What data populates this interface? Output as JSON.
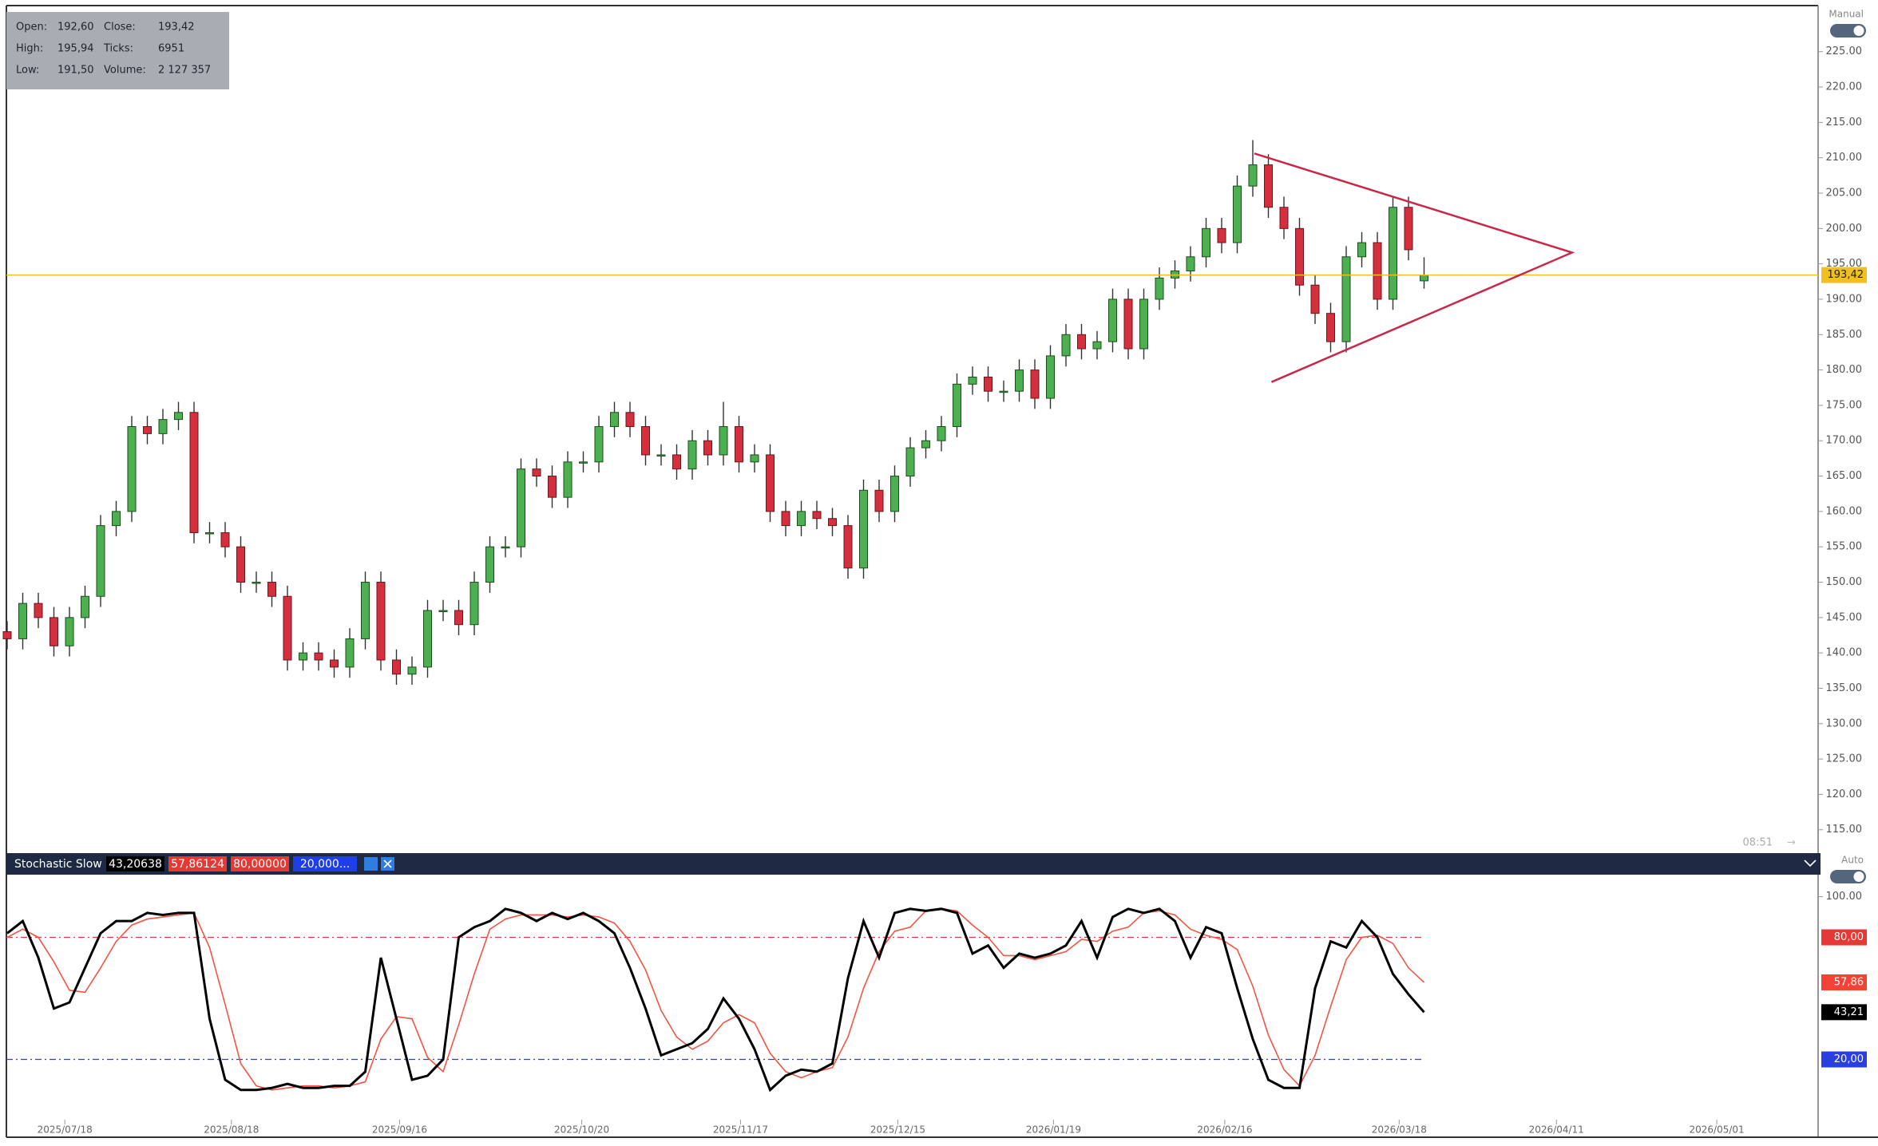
{
  "info_box": [
    [
      "Open:",
      "192,60",
      "Close:",
      "193,42"
    ],
    [
      "High:",
      "195,94",
      "Ticks:",
      "6951"
    ],
    [
      "Low:",
      "191,50",
      "Volume:",
      "2 127 357"
    ]
  ],
  "scale_mode_top": "Manual",
  "scale_mode_bottom": "Auto",
  "clock": "08:51",
  "chart_data": [
    {
      "type": "candlestick",
      "up_color": "#4caf50",
      "down_color": "#d32f3c",
      "xlim": [
        0,
        116
      ],
      "ylim": [
        111.7,
        231.4
      ],
      "xticks": [
        {
          "value": 3.7,
          "label": "2025/07/18"
        },
        {
          "value": 14.4,
          "label": "2025/08/18"
        },
        {
          "value": 25.2,
          "label": "2025/09/16"
        },
        {
          "value": 36.9,
          "label": "2025/10/20"
        },
        {
          "value": 47.1,
          "label": "2025/11/17"
        },
        {
          "value": 57.2,
          "label": "2025/12/15"
        },
        {
          "value": 67.2,
          "label": "2026/01/19"
        },
        {
          "value": 78.2,
          "label": "2026/02/16"
        },
        {
          "value": 89.4,
          "label": "2026/03/18"
        },
        {
          "value": 99.5,
          "label": "2026/04/11"
        },
        {
          "value": 109.8,
          "label": "2026/05/01"
        }
      ],
      "yticks": [
        {
          "value": 225,
          "label": "225.00"
        },
        {
          "value": 220,
          "label": "220.00"
        },
        {
          "value": 215,
          "label": "215.00"
        },
        {
          "value": 210,
          "label": "210.00"
        },
        {
          "value": 205,
          "label": "205.00"
        },
        {
          "value": 200,
          "label": "200.00"
        },
        {
          "value": 195,
          "label": "195.00"
        },
        {
          "value": 190,
          "label": "190.00"
        },
        {
          "value": 185,
          "label": "185.00"
        },
        {
          "value": 180,
          "label": "180.00"
        },
        {
          "value": 175,
          "label": "175.00"
        },
        {
          "value": 170,
          "label": "170.00"
        },
        {
          "value": 165,
          "label": "165.00"
        },
        {
          "value": 160,
          "label": "160.00"
        },
        {
          "value": 155,
          "label": "155.00"
        },
        {
          "value": 150,
          "label": "150.00"
        },
        {
          "value": 145,
          "label": "145.00"
        },
        {
          "value": 140,
          "label": "140.00"
        },
        {
          "value": 135,
          "label": "135.00"
        },
        {
          "value": 130,
          "label": "130.00"
        },
        {
          "value": 125,
          "label": "125.00"
        },
        {
          "value": 120,
          "label": "120.00"
        },
        {
          "value": 115,
          "label": "115.00"
        }
      ],
      "last_price": {
        "value": 193.42,
        "label": "193,42",
        "color": "#f0c020"
      },
      "trendline": {
        "color": "#c8284a",
        "x": [
          80.1,
          100.5,
          81.2
        ],
        "y": [
          210.6,
          196.6,
          178.3
        ]
      },
      "values": [
        [
          143,
          144.5,
          140.5,
          142
        ],
        [
          142,
          148.5,
          140.5,
          147
        ],
        [
          147,
          148.5,
          143.5,
          145
        ],
        [
          145,
          146.5,
          139.5,
          141
        ],
        [
          141,
          146.5,
          139.5,
          145
        ],
        [
          145,
          149.5,
          143.5,
          148
        ],
        [
          148,
          159.5,
          146.5,
          158
        ],
        [
          158,
          161.5,
          156.5,
          160
        ],
        [
          160,
          173.5,
          158.5,
          172
        ],
        [
          172,
          173.5,
          169.5,
          171
        ],
        [
          171,
          174.5,
          169.5,
          173
        ],
        [
          173,
          175.5,
          171.5,
          174
        ],
        [
          174,
          175.5,
          155.5,
          157
        ],
        [
          157,
          158.5,
          155.5,
          157
        ],
        [
          157,
          158.5,
          153.5,
          155
        ],
        [
          155,
          156.5,
          148.5,
          150
        ],
        [
          150,
          151.5,
          148.5,
          150
        ],
        [
          150,
          151.5,
          146.5,
          148
        ],
        [
          148,
          149.5,
          137.5,
          139
        ],
        [
          139,
          141.5,
          137.5,
          140
        ],
        [
          140,
          141.5,
          137.5,
          139
        ],
        [
          139,
          140.5,
          136.5,
          138
        ],
        [
          138,
          143.5,
          136.5,
          142
        ],
        [
          142,
          151.5,
          140.5,
          150
        ],
        [
          150,
          151.5,
          137.5,
          139
        ],
        [
          139,
          140.5,
          135.5,
          137
        ],
        [
          137,
          139.5,
          135.5,
          138
        ],
        [
          138,
          147.5,
          136.5,
          146
        ],
        [
          146,
          147.5,
          144.5,
          146
        ],
        [
          146,
          147.5,
          142.5,
          144
        ],
        [
          144,
          151.5,
          142.5,
          150
        ],
        [
          150,
          156.5,
          148.5,
          155
        ],
        [
          155,
          156.5,
          153.5,
          155
        ],
        [
          155,
          167.5,
          153.5,
          166
        ],
        [
          166,
          167.5,
          163.5,
          165
        ],
        [
          165,
          166.5,
          160.5,
          162
        ],
        [
          162,
          168.5,
          160.5,
          167
        ],
        [
          167,
          168.5,
          165.5,
          167
        ],
        [
          167,
          173.5,
          165.5,
          172
        ],
        [
          172,
          175.5,
          170.5,
          174
        ],
        [
          174,
          175.5,
          170.5,
          172
        ],
        [
          172,
          173.5,
          166.5,
          168
        ],
        [
          168,
          169.5,
          166.5,
          168
        ],
        [
          168,
          169.5,
          164.5,
          166
        ],
        [
          166,
          171.5,
          164.5,
          170
        ],
        [
          170,
          171.5,
          166.5,
          168
        ],
        [
          168,
          175.5,
          166.5,
          172
        ],
        [
          172,
          173.5,
          165.5,
          167
        ],
        [
          167,
          169.5,
          165.5,
          168
        ],
        [
          168,
          169.5,
          158.5,
          160
        ],
        [
          160,
          161.5,
          156.5,
          158
        ],
        [
          158,
          161.5,
          156.5,
          160
        ],
        [
          160,
          161.5,
          157.5,
          159
        ],
        [
          159,
          160.5,
          156.5,
          158
        ],
        [
          158,
          159.5,
          150.5,
          152
        ],
        [
          152,
          164.5,
          150.5,
          163
        ],
        [
          163,
          164.5,
          158.5,
          160
        ],
        [
          160,
          166.5,
          158.5,
          165
        ],
        [
          165,
          170.5,
          163.5,
          169
        ],
        [
          169,
          171.5,
          167.5,
          170
        ],
        [
          170,
          173.5,
          168.5,
          172
        ],
        [
          172,
          179.5,
          170.5,
          178
        ],
        [
          178,
          180.5,
          176.5,
          179
        ],
        [
          179,
          180.5,
          175.5,
          177
        ],
        [
          177,
          178.5,
          175.5,
          177
        ],
        [
          177,
          181.5,
          175.5,
          180
        ],
        [
          180,
          181.5,
          174.5,
          176
        ],
        [
          176,
          183.5,
          174.5,
          182
        ],
        [
          182,
          186.5,
          180.5,
          185
        ],
        [
          185,
          186.5,
          181.5,
          183
        ],
        [
          183,
          185.5,
          181.5,
          184
        ],
        [
          184,
          191.5,
          182.5,
          190
        ],
        [
          190,
          191.5,
          181.5,
          183
        ],
        [
          183,
          191.5,
          181.5,
          190
        ],
        [
          190,
          194.5,
          188.5,
          193
        ],
        [
          193,
          195.5,
          191.5,
          194
        ],
        [
          194,
          197.5,
          192.5,
          196
        ],
        [
          196,
          201.5,
          194.5,
          200
        ],
        [
          200,
          201.5,
          196.5,
          198
        ],
        [
          198,
          207.5,
          196.5,
          206
        ],
        [
          206,
          212.5,
          204.5,
          209
        ],
        [
          209,
          210.5,
          201.5,
          203
        ],
        [
          203,
          204.5,
          198.5,
          200
        ],
        [
          200,
          201.5,
          190.5,
          192
        ],
        [
          192,
          193.5,
          186.5,
          188
        ],
        [
          188,
          189.5,
          182.5,
          184
        ],
        [
          184,
          197.5,
          182.5,
          196
        ],
        [
          196,
          199.5,
          194.5,
          198
        ],
        [
          198,
          199.5,
          188.5,
          190
        ],
        [
          190,
          204.5,
          188.5,
          203
        ],
        [
          203,
          204.5,
          195.5,
          197
        ],
        [
          192.6,
          195.94,
          191.5,
          193.42
        ]
      ]
    },
    {
      "type": "line",
      "title": "Stochastic Slow",
      "header_values": [
        {
          "label": "43,20638",
          "color": "#000000"
        },
        {
          "label": "57,86124",
          "color": "#e53935"
        },
        {
          "label": "80,00000",
          "color": "#e53935"
        },
        {
          "label": "20,000...",
          "color": "#1e3ee8"
        }
      ],
      "ylim": [
        -9.6,
        110.8
      ],
      "yticks": [
        {
          "value": 100,
          "label": "100.00"
        }
      ],
      "levels": [
        {
          "value": 80,
          "label": "80,00",
          "color": "#e53935"
        },
        {
          "value": 20,
          "label": "20,00",
          "color": "#2b3ee0"
        }
      ],
      "series": [
        {
          "color": "#000000",
          "last_value_label": "43,21",
          "values": [
            82,
            88,
            70,
            45,
            48,
            65,
            82,
            88,
            88,
            92,
            91,
            92,
            92,
            40,
            10,
            5,
            5,
            6,
            8,
            6,
            6,
            7,
            7,
            14,
            70,
            40,
            10,
            12,
            20,
            80,
            85,
            88,
            94,
            92,
            88,
            92,
            89,
            92,
            88,
            82,
            65,
            45,
            22,
            25,
            28,
            35,
            50,
            40,
            25,
            5,
            12,
            15,
            14,
            18,
            60,
            88,
            70,
            92,
            94,
            93,
            94,
            92,
            72,
            76,
            65,
            72,
            70,
            72,
            76,
            88,
            70,
            90,
            94,
            92,
            94,
            88,
            70,
            85,
            82,
            55,
            30,
            10,
            6,
            6,
            55,
            78,
            75,
            88,
            80,
            62,
            52,
            43.21
          ]
        },
        {
          "color": "#f05545",
          "last_value_label": "57,86",
          "values": [
            80,
            84,
            80,
            68,
            54,
            53,
            65,
            78,
            86,
            89,
            90,
            91,
            92,
            75,
            47,
            18,
            7,
            5,
            6,
            7,
            7,
            6,
            7,
            9,
            30,
            41,
            40,
            21,
            14,
            37,
            62,
            84,
            89,
            91,
            91,
            91,
            90,
            91,
            90,
            87,
            78,
            64,
            44,
            31,
            25,
            29,
            38,
            42,
            38,
            23,
            14,
            11,
            14,
            16,
            31,
            55,
            73,
            83,
            85,
            93,
            94,
            93,
            86,
            80,
            71,
            71,
            69,
            71,
            73,
            79,
            78,
            83,
            85,
            92,
            93,
            91,
            84,
            81,
            79,
            74,
            56,
            32,
            15,
            7,
            22,
            46,
            69,
            80,
            81,
            77,
            65,
            57.86
          ]
        }
      ]
    }
  ]
}
